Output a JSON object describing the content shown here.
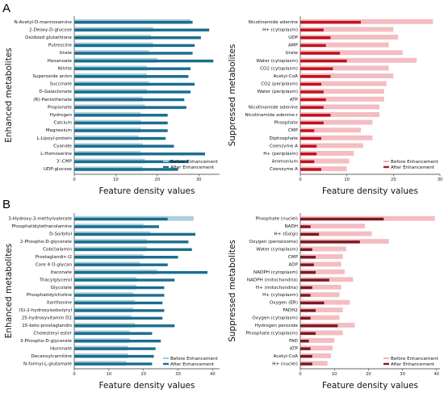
{
  "figure": {
    "panel_labels": [
      "A",
      "B"
    ]
  },
  "chart_data": [
    {
      "id": "A-enhanced",
      "type": "bar",
      "orientation": "horizontal",
      "xlabel": "Feature density values",
      "ylabel": "Enhanced metabolites",
      "xlim": [
        0,
        35
      ],
      "xticks": [
        0,
        10,
        20,
        30
      ],
      "series": [
        {
          "name": "Before Enhancement",
          "color": "#9fc6d3"
        },
        {
          "name": "After Enhancement",
          "color": "#1a6e8e"
        }
      ],
      "categories": [
        "N-Acetyl-D-mannosamine",
        "2-Deoxy-D-glucose",
        "Oxidized glutathione",
        "Putrescine",
        "Urate",
        "Hexanoate",
        "Nitrite",
        "Superoxide anion",
        "Succinate",
        "D-Galactonate",
        "(R)-Pantothenate",
        "Propionate",
        "Hydrogen",
        "Calcium",
        "Magnesium",
        "L-Lipoyl-protein",
        "Cyanide",
        "L-Homoserine",
        "3'-CMP",
        "UDP-glucose"
      ],
      "before": [
        28.0,
        19.0,
        18.5,
        19.0,
        18.0,
        20.0,
        17.5,
        17.5,
        18.0,
        17.5,
        16.5,
        17.0,
        16.0,
        16.0,
        16.0,
        15.5,
        16.5,
        16.0,
        17.0,
        16.5
      ],
      "after": [
        28.5,
        32.5,
        30.5,
        29.0,
        28.5,
        33.5,
        28.0,
        27.5,
        29.0,
        28.0,
        26.5,
        27.0,
        22.5,
        22.5,
        22.5,
        22.0,
        24.0,
        31.5,
        27.5,
        25.0
      ]
    },
    {
      "id": "A-suppressed",
      "type": "bar",
      "orientation": "horizontal",
      "xlabel": "Feature density values",
      "ylabel": "Suppressed metabolites",
      "xlim": [
        0,
        30
      ],
      "xticks": [
        0,
        10,
        20,
        30
      ],
      "series": [
        {
          "name": "Before Enhancement",
          "color": "#f2b1b6"
        },
        {
          "name": "After Enhancement",
          "color": "#c1121f"
        }
      ],
      "categories": [
        "Nicotinamide adenine",
        "H+ (cytoplasm)",
        "UDP",
        "AMP",
        "Urate",
        "Water (cytoplasm)",
        "CO2 (cytoplasm)",
        "Acetyl-CoA",
        "CO2 (periplasm)",
        "Water (periplasm)",
        "ATP",
        "Nicotinamide adenine",
        "Nicotinamide adenine-r",
        "Phosphate",
        "CMP",
        "Diphosphate",
        "Coenzyme A",
        "H+ (periplasm)",
        "Ammonium",
        "Coenzyme A"
      ],
      "before": [
        28.5,
        20.0,
        21.0,
        19.0,
        22.0,
        25.0,
        19.0,
        20.0,
        18.5,
        18.0,
        18.0,
        17.0,
        17.0,
        15.5,
        13.0,
        15.5,
        13.5,
        11.5,
        10.5,
        10.0
      ],
      "after": [
        13.0,
        5.0,
        6.5,
        5.5,
        8.5,
        10.0,
        7.0,
        6.5,
        4.5,
        5.0,
        5.5,
        5.0,
        6.5,
        5.0,
        3.0,
        4.5,
        3.5,
        3.5,
        3.0,
        4.5
      ]
    },
    {
      "id": "B-enhanced",
      "type": "bar",
      "orientation": "horizontal",
      "xlabel": "Feature density values",
      "ylabel": "Enhanced metabolites",
      "xlim": [
        0,
        42
      ],
      "xticks": [
        0,
        10,
        20,
        30,
        40
      ],
      "series": [
        {
          "name": "Before Enhancement",
          "color": "#9fc6d3"
        },
        {
          "name": "After Enhancement",
          "color": "#1a6e8e"
        }
      ],
      "categories": [
        "3-Hydroxy-3-methylvalerate",
        "Phosphatidylethanolamine",
        "D-Sorbitol",
        "2-Phospho-D-glycerate",
        "Cob(I)alamin",
        "Prostaglandin I2",
        "Core 4 O-glycan",
        "Itaconate",
        "Triacylglycerol",
        "Glycolate",
        "Phosphatidylcholine",
        "Xanthosine",
        "(S)-2-hydroxyisobutyryl",
        "25-hydroxyvitamin D2",
        "15-keto-prostaglandin",
        "Cholesteryl ester",
        "3-Phospho-D-glycerate",
        "Iduronate",
        "Decanoylcarnitine",
        "N-formyl-L-glutamate"
      ],
      "before": [
        34.5,
        20.0,
        22.0,
        21.0,
        21.0,
        20.0,
        19.0,
        24.0,
        18.0,
        18.0,
        17.0,
        17.5,
        17.0,
        16.5,
        17.5,
        16.0,
        16.0,
        15.5,
        15.5,
        15.0
      ],
      "after": [
        27.0,
        24.5,
        35.0,
        33.0,
        34.0,
        30.0,
        27.0,
        38.5,
        29.0,
        26.0,
        26.0,
        25.5,
        26.0,
        25.5,
        29.0,
        22.5,
        25.0,
        23.5,
        23.0,
        22.5
      ]
    },
    {
      "id": "B-suppressed",
      "type": "bar",
      "orientation": "horizontal",
      "xlabel": "Feature density values",
      "ylabel": "Suppressed metabolites",
      "xlim": [
        0,
        41
      ],
      "xticks": [
        0,
        10,
        20,
        30,
        40
      ],
      "series": [
        {
          "name": "Before Enhancement",
          "color": "#f2b1b6"
        },
        {
          "name": "After Enhancement",
          "color": "#7a1a22"
        }
      ],
      "categories": [
        "Phosphate (nuclei)",
        "NADH",
        "H+ (Golgi)",
        "Oxygen (peroxisome)",
        "Water (cytoplasm)",
        "CMP",
        "ADP",
        "NADPH (cytoplasm)",
        "NADPH (mitochondria)",
        "H+ (mitochondria)",
        "H+ (cytoplasm)",
        "Oxygen (ER)",
        "FADH2",
        "Oxygen (cytoplasm)",
        "Hydrogen peroxide",
        "Phosphate (cytoplasm)",
        "FAD",
        "ATP",
        "Acetyl-CoA",
        "H+ (nuclei)"
      ],
      "before": [
        39.5,
        19.0,
        21.0,
        26.0,
        13.5,
        12.5,
        12.0,
        13.0,
        15.5,
        12.0,
        11.5,
        14.5,
        12.5,
        11.5,
        16.0,
        12.5,
        10.0,
        9.5,
        9.0,
        8.0
      ],
      "after": [
        24.5,
        3.0,
        5.5,
        17.5,
        3.5,
        4.5,
        4.0,
        4.5,
        8.5,
        3.5,
        3.0,
        7.0,
        4.5,
        3.0,
        11.0,
        4.5,
        2.5,
        3.0,
        3.5,
        3.5
      ]
    }
  ]
}
